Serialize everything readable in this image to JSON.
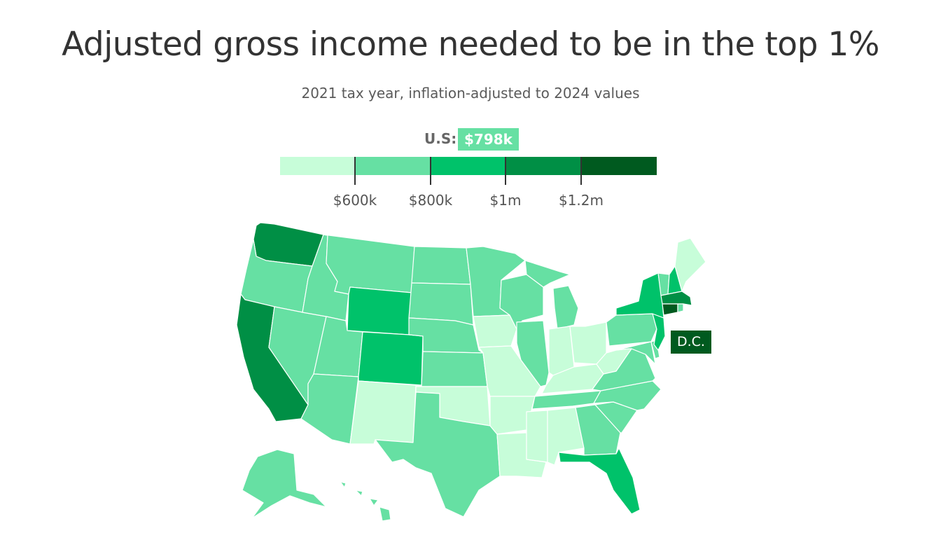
{
  "title": "Adjusted gross income needed to be in the top 1%",
  "subtitle": "2021 tax year, inflation-adjusted to 2024 values",
  "us_label": "U.S:",
  "us_value": "$798k",
  "dc_label": "D.C.",
  "colors": {
    "bin1": "#c7fdd9",
    "bin2": "#66e0a3",
    "bin3": "#00c26a",
    "bin4": "#008f45",
    "bin5": "#005a1f"
  },
  "legend": {
    "ticks": [
      "$600k",
      "$800k",
      "$1m",
      "$1.2m"
    ]
  },
  "chart_data": {
    "type": "choropleth",
    "bins": [
      {
        "range": "< $600k",
        "color": "#c7fdd9"
      },
      {
        "range": "$600k–$800k",
        "color": "#66e0a3"
      },
      {
        "range": "$800k–$1m",
        "color": "#00c26a"
      },
      {
        "range": "$1m–$1.2m",
        "color": "#008f45"
      },
      {
        "range": "> $1.2m",
        "color": "#005a1f"
      }
    ],
    "us_value": "$798k",
    "states": {
      "WA": 4,
      "OR": 2,
      "CA": 4,
      "NV": 2,
      "ID": 2,
      "MT": 2,
      "WY": 3,
      "UT": 2,
      "AZ": 2,
      "CO": 3,
      "NM": 1,
      "ND": 2,
      "SD": 2,
      "NE": 2,
      "KS": 2,
      "OK": 1,
      "TX": 2,
      "MN": 2,
      "IA": 1,
      "MO": 1,
      "AR": 1,
      "LA": 1,
      "WI": 2,
      "IL": 2,
      "MI": 2,
      "IN": 1,
      "OH": 1,
      "KY": 1,
      "TN": 2,
      "MS": 1,
      "AL": 1,
      "GA": 2,
      "FL": 3,
      "SC": 2,
      "NC": 2,
      "VA": 2,
      "WV": 1,
      "PA": 2,
      "NY": 3,
      "VT": 2,
      "NH": 3,
      "ME": 1,
      "MA": 4,
      "CT": 5,
      "RI": 2,
      "NJ": 3,
      "DE": 2,
      "MD": 2,
      "DC": 5,
      "AK": 2,
      "HI": 2
    }
  }
}
